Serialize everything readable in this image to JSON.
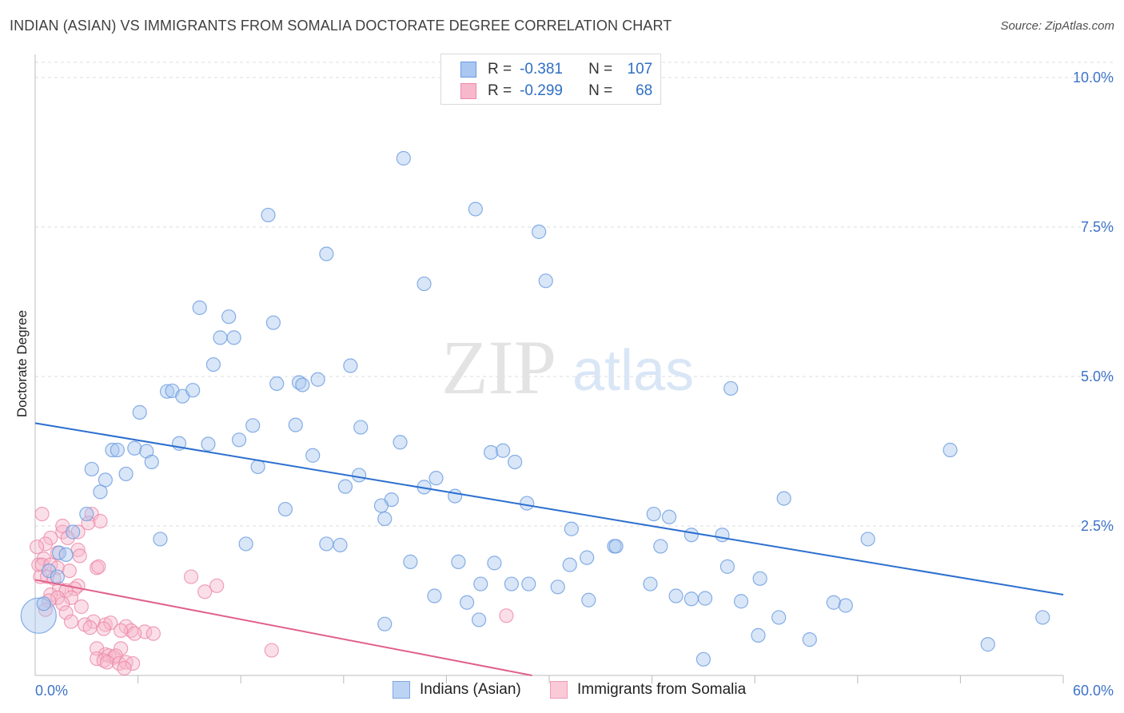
{
  "title": "INDIAN (ASIAN) VS IMMIGRANTS FROM SOMALIA DOCTORATE DEGREE CORRELATION CHART",
  "source": "Source: ZipAtlas.com",
  "watermark": {
    "zip": "ZIP",
    "atlas": "atlas"
  },
  "legend": {
    "rows": [
      {
        "r_label": "R =",
        "r_value": "-0.381",
        "n_label": "N =",
        "n_value": "107"
      },
      {
        "r_label": "R =",
        "r_value": "-0.299",
        "n_label": "N =",
        "n_value": "68"
      }
    ]
  },
  "bottom_legend": [
    "Indians (Asian)",
    "Immigrants from Somalia"
  ],
  "colors": {
    "blue_fill": "#a9c7f0",
    "blue_stroke": "#6a9be0",
    "blue_line": "#2b6fcf",
    "pink_fill": "#f7b8cb",
    "pink_stroke": "#ec8aa9",
    "pink_line": "#e0608a",
    "tick_label": "#3d73c9",
    "grid": "#dcdcdc"
  },
  "chart_data": {
    "type": "scatter",
    "title": "INDIAN (ASIAN) VS IMMIGRANTS FROM SOMALIA DOCTORATE DEGREE CORRELATION CHART",
    "xlabel": "",
    "ylabel": "Doctorate Degree",
    "xlim": [
      0,
      60
    ],
    "ylim": [
      0,
      10.5
    ],
    "x_tick_labels": [
      {
        "value": 0,
        "label": "0.0%"
      },
      {
        "value": 60,
        "label": "60.0%"
      }
    ],
    "y_tick_labels": [
      {
        "value": 2.5,
        "label": "2.5%"
      },
      {
        "value": 5.0,
        "label": "5.0%"
      },
      {
        "value": 7.5,
        "label": "7.5%"
      },
      {
        "value": 10.0,
        "label": "10.0%"
      }
    ],
    "x_minor_ticks": [
      6,
      12,
      18,
      24,
      30,
      36,
      42,
      48,
      54,
      60
    ],
    "series": [
      {
        "name": "Indians (Asian)",
        "trend": {
          "x0": 0,
          "y0": 4.22,
          "x1": 60,
          "y1": 1.35
        },
        "points": [
          [
            21.5,
            8.65
          ],
          [
            25.7,
            7.8
          ],
          [
            13.6,
            7.7
          ],
          [
            29.4,
            7.42
          ],
          [
            17.0,
            7.05
          ],
          [
            22.7,
            6.55
          ],
          [
            29.8,
            6.6
          ],
          [
            9.6,
            6.15
          ],
          [
            11.3,
            6.0
          ],
          [
            13.9,
            5.9
          ],
          [
            10.8,
            5.65
          ],
          [
            11.6,
            5.65
          ],
          [
            10.4,
            5.2
          ],
          [
            18.4,
            5.18
          ],
          [
            14.1,
            4.88
          ],
          [
            15.4,
            4.9
          ],
          [
            15.6,
            4.86
          ],
          [
            16.5,
            4.95
          ],
          [
            7.7,
            4.75
          ],
          [
            8.0,
            4.76
          ],
          [
            8.6,
            4.67
          ],
          [
            9.2,
            4.77
          ],
          [
            40.6,
            4.8
          ],
          [
            6.1,
            4.4
          ],
          [
            12.7,
            4.18
          ],
          [
            15.2,
            4.19
          ],
          [
            19.0,
            4.15
          ],
          [
            8.4,
            3.88
          ],
          [
            10.1,
            3.87
          ],
          [
            11.9,
            3.94
          ],
          [
            21.3,
            3.9
          ],
          [
            4.5,
            3.77
          ],
          [
            4.8,
            3.77
          ],
          [
            5.8,
            3.8
          ],
          [
            6.5,
            3.75
          ],
          [
            26.6,
            3.73
          ],
          [
            27.3,
            3.76
          ],
          [
            28.0,
            3.57
          ],
          [
            53.4,
            3.77
          ],
          [
            6.8,
            3.57
          ],
          [
            16.2,
            3.68
          ],
          [
            3.3,
            3.45
          ],
          [
            13.0,
            3.49
          ],
          [
            5.3,
            3.37
          ],
          [
            18.9,
            3.35
          ],
          [
            23.4,
            3.3
          ],
          [
            4.1,
            3.27
          ],
          [
            18.1,
            3.16
          ],
          [
            22.7,
            3.15
          ],
          [
            3.8,
            3.07
          ],
          [
            24.5,
            3.0
          ],
          [
            20.8,
            2.94
          ],
          [
            43.7,
            2.96
          ],
          [
            28.7,
            2.88
          ],
          [
            14.6,
            2.78
          ],
          [
            20.2,
            2.84
          ],
          [
            3.0,
            2.7
          ],
          [
            20.4,
            2.62
          ],
          [
            36.1,
            2.7
          ],
          [
            37.0,
            2.65
          ],
          [
            2.2,
            2.4
          ],
          [
            31.3,
            2.45
          ],
          [
            38.3,
            2.35
          ],
          [
            40.1,
            2.35
          ],
          [
            48.6,
            2.28
          ],
          [
            7.3,
            2.28
          ],
          [
            12.3,
            2.2
          ],
          [
            17.0,
            2.2
          ],
          [
            17.8,
            2.18
          ],
          [
            33.8,
            2.16
          ],
          [
            33.9,
            2.16
          ],
          [
            36.5,
            2.16
          ],
          [
            1.4,
            2.05
          ],
          [
            1.8,
            2.02
          ],
          [
            32.2,
            1.97
          ],
          [
            21.9,
            1.9
          ],
          [
            24.7,
            1.9
          ],
          [
            26.8,
            1.88
          ],
          [
            31.2,
            1.85
          ],
          [
            40.4,
            1.82
          ],
          [
            42.3,
            1.62
          ],
          [
            26.0,
            1.53
          ],
          [
            27.8,
            1.53
          ],
          [
            28.8,
            1.53
          ],
          [
            35.9,
            1.53
          ],
          [
            30.5,
            1.48
          ],
          [
            23.3,
            1.33
          ],
          [
            37.4,
            1.33
          ],
          [
            38.3,
            1.28
          ],
          [
            39.1,
            1.29
          ],
          [
            32.3,
            1.26
          ],
          [
            41.2,
            1.24
          ],
          [
            25.2,
            1.22
          ],
          [
            46.6,
            1.22
          ],
          [
            47.3,
            1.17
          ],
          [
            43.4,
            0.97
          ],
          [
            58.8,
            0.97
          ],
          [
            25.9,
            0.93
          ],
          [
            20.4,
            0.86
          ],
          [
            42.2,
            0.67
          ],
          [
            45.2,
            0.6
          ],
          [
            55.6,
            0.52
          ],
          [
            39.0,
            0.27
          ],
          [
            0.2,
            1.0
          ],
          [
            0.5,
            1.2
          ],
          [
            0.8,
            1.75
          ],
          [
            1.3,
            1.65
          ]
        ]
      },
      {
        "name": "Immigrants from Somalia",
        "trend": {
          "x0": 0,
          "y0": 1.6,
          "x1": 29,
          "y1": 0.0
        },
        "points": [
          [
            0.4,
            2.7
          ],
          [
            3.3,
            2.7
          ],
          [
            3.1,
            2.55
          ],
          [
            3.8,
            2.58
          ],
          [
            1.6,
            2.4
          ],
          [
            0.9,
            2.3
          ],
          [
            2.5,
            2.4
          ],
          [
            1.6,
            2.5
          ],
          [
            1.9,
            2.3
          ],
          [
            0.6,
            2.2
          ],
          [
            0.1,
            2.15
          ],
          [
            2.5,
            2.1
          ],
          [
            0.5,
            1.95
          ],
          [
            1.3,
            2.05
          ],
          [
            2.6,
            2.0
          ],
          [
            0.2,
            1.85
          ],
          [
            0.4,
            1.85
          ],
          [
            0.9,
            1.85
          ],
          [
            1.3,
            1.8
          ],
          [
            2.0,
            1.75
          ],
          [
            3.6,
            1.8
          ],
          [
            3.7,
            1.82
          ],
          [
            0.3,
            1.65
          ],
          [
            0.7,
            1.65
          ],
          [
            1.1,
            1.62
          ],
          [
            9.1,
            1.65
          ],
          [
            10.6,
            1.5
          ],
          [
            2.5,
            1.5
          ],
          [
            2.3,
            1.45
          ],
          [
            1.4,
            1.45
          ],
          [
            1.8,
            1.42
          ],
          [
            0.9,
            1.35
          ],
          [
            1.3,
            1.3
          ],
          [
            2.1,
            1.3
          ],
          [
            0.8,
            1.25
          ],
          [
            9.9,
            1.4
          ],
          [
            1.6,
            1.2
          ],
          [
            2.7,
            1.15
          ],
          [
            0.6,
            1.1
          ],
          [
            1.8,
            1.05
          ],
          [
            2.1,
            0.9
          ],
          [
            3.4,
            0.9
          ],
          [
            4.1,
            0.85
          ],
          [
            4.4,
            0.88
          ],
          [
            5.3,
            0.82
          ],
          [
            2.9,
            0.85
          ],
          [
            3.2,
            0.8
          ],
          [
            4.0,
            0.78
          ],
          [
            5.6,
            0.75
          ],
          [
            5.0,
            0.75
          ],
          [
            6.4,
            0.73
          ],
          [
            5.8,
            0.7
          ],
          [
            6.9,
            0.7
          ],
          [
            27.5,
            1.0
          ],
          [
            5.0,
            0.45
          ],
          [
            3.6,
            0.45
          ],
          [
            13.8,
            0.42
          ],
          [
            4.1,
            0.35
          ],
          [
            4.3,
            0.33
          ],
          [
            4.6,
            0.3
          ],
          [
            4.7,
            0.33
          ],
          [
            3.6,
            0.28
          ],
          [
            4.0,
            0.25
          ],
          [
            4.2,
            0.22
          ],
          [
            4.9,
            0.2
          ],
          [
            5.3,
            0.22
          ],
          [
            5.7,
            0.2
          ],
          [
            5.2,
            0.12
          ]
        ]
      }
    ]
  }
}
